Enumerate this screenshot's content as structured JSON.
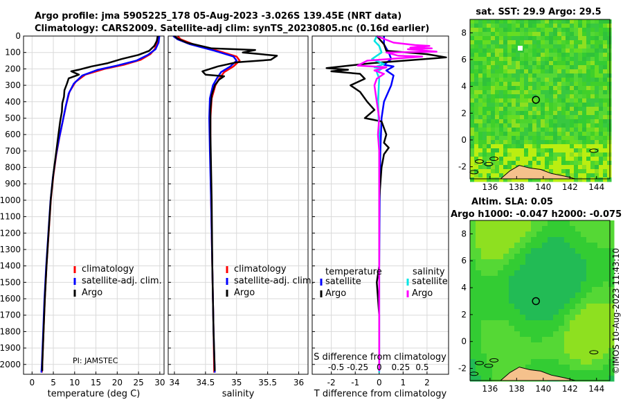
{
  "title_line1": "Argo profile: jma 5905225_178 05-Aug-2023 -3.026S 139.45E (NRT data)",
  "title_line2": "Climatology: CARS2009. Satellite-adj clim: synTS_20230805.nc (0.16d earlier)",
  "pi_label": "PI: JAMSTEC",
  "watermark": "©IMOS 10-Aug-2023 11:43:10",
  "colors": {
    "clim": "#ff0000",
    "sat": "#0000ff",
    "argo": "#000000",
    "sat_s": "#00e5e5",
    "argo_s": "#ff00ff",
    "land": "#f5c18c"
  },
  "chart_data": [
    {
      "type": "line",
      "id": "temperature",
      "xlabel": "temperature (deg C)",
      "xlim": [
        -2,
        31
      ],
      "ylim": [
        2060,
        0
      ],
      "xticks": [
        0,
        5,
        10,
        15,
        20,
        25,
        30
      ],
      "yticks": [
        0,
        100,
        200,
        300,
        400,
        500,
        600,
        700,
        800,
        900,
        1000,
        1100,
        1200,
        1300,
        1400,
        1500,
        1600,
        1700,
        1800,
        1900,
        2000
      ],
      "legend": [
        "climatology",
        "satellite-adj. clim.",
        "Argo"
      ],
      "series": [
        {
          "name": "climatology",
          "color": "clim",
          "points": [
            [
              29.6,
              0
            ],
            [
              29.4,
              40
            ],
            [
              28.8,
              80
            ],
            [
              27.8,
              110
            ],
            [
              25.5,
              145
            ],
            [
              21.5,
              175
            ],
            [
              17,
              200
            ],
            [
              12.5,
              235
            ],
            [
              10.2,
              280
            ],
            [
              8.8,
              340
            ],
            [
              8,
              420
            ],
            [
              7.2,
              520
            ],
            [
              6.4,
              620
            ],
            [
              5.7,
              720
            ],
            [
              5,
              850
            ],
            [
              4.4,
              1000
            ],
            [
              3.9,
              1200
            ],
            [
              3.4,
              1400
            ],
            [
              3,
              1600
            ],
            [
              2.7,
              1800
            ],
            [
              2.4,
              2000
            ],
            [
              2.3,
              2050
            ]
          ]
        },
        {
          "name": "satellite-adj. clim.",
          "color": "sat",
          "points": [
            [
              29.9,
              0
            ],
            [
              29.7,
              40
            ],
            [
              29,
              80
            ],
            [
              27.2,
              115
            ],
            [
              24.5,
              150
            ],
            [
              20,
              180
            ],
            [
              15.5,
              205
            ],
            [
              11.8,
              240
            ],
            [
              9.8,
              290
            ],
            [
              8.6,
              350
            ],
            [
              7.9,
              430
            ],
            [
              7.1,
              530
            ],
            [
              6.3,
              630
            ],
            [
              5.6,
              730
            ],
            [
              4.9,
              860
            ],
            [
              4.3,
              1010
            ],
            [
              3.8,
              1210
            ],
            [
              3.3,
              1410
            ],
            [
              2.9,
              1610
            ],
            [
              2.6,
              1810
            ],
            [
              2.3,
              2000
            ],
            [
              2.2,
              2050
            ]
          ]
        },
        {
          "name": "Argo",
          "color": "argo",
          "points": [
            [
              29.5,
              0
            ],
            [
              29.3,
              30
            ],
            [
              28.7,
              60
            ],
            [
              27.5,
              90
            ],
            [
              25,
              115
            ],
            [
              21,
              140
            ],
            [
              17.8,
              165
            ],
            [
              14,
              185
            ],
            [
              11,
              205
            ],
            [
              9.2,
              215
            ],
            [
              11,
              235
            ],
            [
              8.6,
              258
            ],
            [
              8.2,
              290
            ],
            [
              7.6,
              330
            ],
            [
              7.5,
              370
            ],
            [
              7.1,
              410
            ],
            [
              7,
              460
            ],
            [
              6.6,
              520
            ],
            [
              6.2,
              600
            ],
            [
              5.7,
              700
            ],
            [
              5,
              840
            ],
            [
              4.4,
              990
            ],
            [
              3.9,
              1190
            ],
            [
              3.4,
              1400
            ],
            [
              3,
              1600
            ],
            [
              2.7,
              1800
            ],
            [
              2.4,
              2000
            ],
            [
              2.4,
              2040
            ]
          ]
        }
      ]
    },
    {
      "type": "line",
      "id": "salinity",
      "xlabel": "salinity",
      "xlim": [
        33.9,
        36.15
      ],
      "ylim": [
        2060,
        0
      ],
      "xticks": [
        34,
        34.5,
        35,
        35.5,
        36
      ],
      "legend": [
        "climatology",
        "satellite-adj. clim.",
        "Argo"
      ],
      "series": [
        {
          "name": "climatology",
          "color": "clim",
          "points": [
            [
              34.05,
              0
            ],
            [
              34.1,
              20
            ],
            [
              34.3,
              50
            ],
            [
              34.7,
              90
            ],
            [
              35,
              125
            ],
            [
              35.05,
              150
            ],
            [
              34.95,
              185
            ],
            [
              34.8,
              220
            ],
            [
              34.72,
              260
            ],
            [
              34.66,
              300
            ],
            [
              34.6,
              380
            ],
            [
              34.58,
              500
            ],
            [
              34.58,
              700
            ],
            [
              34.59,
              1000
            ],
            [
              34.61,
              1400
            ],
            [
              34.63,
              1800
            ],
            [
              34.64,
              2050
            ]
          ]
        },
        {
          "name": "satellite-adj. clim.",
          "color": "sat",
          "points": [
            [
              33.98,
              0
            ],
            [
              34.05,
              20
            ],
            [
              34.25,
              50
            ],
            [
              34.65,
              90
            ],
            [
              34.95,
              125
            ],
            [
              35.0,
              150
            ],
            [
              34.9,
              185
            ],
            [
              34.75,
              220
            ],
            [
              34.68,
              260
            ],
            [
              34.62,
              300
            ],
            [
              34.57,
              380
            ],
            [
              34.56,
              500
            ],
            [
              34.57,
              700
            ],
            [
              34.59,
              1000
            ],
            [
              34.61,
              1400
            ],
            [
              34.63,
              1800
            ],
            [
              34.65,
              2050
            ]
          ]
        },
        {
          "name": "Argo",
          "color": "argo",
          "points": [
            [
              34.0,
              0
            ],
            [
              34.05,
              15
            ],
            [
              34.2,
              40
            ],
            [
              34.6,
              75
            ],
            [
              35.3,
              85
            ],
            [
              35.1,
              100
            ],
            [
              35.65,
              120
            ],
            [
              35.55,
              145
            ],
            [
              35.0,
              160
            ],
            [
              34.7,
              185
            ],
            [
              34.45,
              215
            ],
            [
              34.5,
              235
            ],
            [
              34.8,
              245
            ],
            [
              34.72,
              265
            ],
            [
              34.65,
              300
            ],
            [
              34.6,
              360
            ],
            [
              34.58,
              450
            ],
            [
              34.58,
              600
            ],
            [
              34.59,
              800
            ],
            [
              34.6,
              1000
            ],
            [
              34.61,
              1400
            ],
            [
              34.63,
              1800
            ],
            [
              34.65,
              2040
            ]
          ]
        }
      ]
    },
    {
      "type": "line",
      "id": "difference",
      "xlabel": "T difference from climatology",
      "xlabel_top": "S difference from climatology",
      "xlim": [
        -2.8,
        2.9
      ],
      "ylim": [
        2060,
        0
      ],
      "xticks": [
        -2,
        -1,
        0,
        1,
        2
      ],
      "top_ticks": [
        [
          "-0.5",
          -1.8
        ],
        [
          "-0.25",
          -0.9
        ],
        [
          "0",
          0
        ],
        [
          "0.25",
          0.9
        ],
        [
          "0.5",
          1.8
        ]
      ],
      "legend_left_title": "temperature",
      "legend_right_title": "salinity",
      "legend_left": [
        "satellite",
        "Argo"
      ],
      "legend_right": [
        "satellite",
        "Argo"
      ],
      "series": [
        {
          "name": "T satellite",
          "color": "sat",
          "points": [
            [
              0.2,
              0
            ],
            [
              0.2,
              50
            ],
            [
              0.4,
              100
            ],
            [
              0.5,
              140
            ],
            [
              0.2,
              175
            ],
            [
              0.6,
              185
            ],
            [
              0.3,
              210
            ],
            [
              0.6,
              240
            ],
            [
              0.5,
              300
            ],
            [
              0.2,
              400
            ],
            [
              0.1,
              500
            ],
            [
              0.05,
              700
            ],
            [
              0.02,
              1000
            ],
            [
              0,
              1400
            ],
            [
              0,
              2050
            ]
          ]
        },
        {
          "name": "T Argo",
          "color": "argo",
          "points": [
            [
              -0.1,
              0
            ],
            [
              0.2,
              50
            ],
            [
              0.3,
              90
            ],
            [
              2.0,
              110
            ],
            [
              2.8,
              130
            ],
            [
              -0.3,
              165
            ],
            [
              -2.2,
              195
            ],
            [
              -1.3,
              205
            ],
            [
              -2.0,
              215
            ],
            [
              -0.8,
              230
            ],
            [
              -0.6,
              260
            ],
            [
              -1.2,
              300
            ],
            [
              -0.8,
              340
            ],
            [
              -0.5,
              400
            ],
            [
              -0.2,
              450
            ],
            [
              -0.6,
              500
            ],
            [
              0.1,
              520
            ],
            [
              0.3,
              600
            ],
            [
              0.2,
              650
            ],
            [
              0.4,
              680
            ],
            [
              0.2,
              720
            ],
            [
              0.1,
              800
            ],
            [
              0.05,
              900
            ],
            [
              0,
              1000
            ],
            [
              0,
              1400
            ],
            [
              -0.1,
              1500
            ],
            [
              0,
              1700
            ],
            [
              0,
              2040
            ]
          ]
        },
        {
          "name": "S satellite",
          "color": "sat_s",
          "points": [
            [
              -0.1,
              0
            ],
            [
              -0.2,
              30
            ],
            [
              0,
              60
            ],
            [
              0.1,
              100
            ],
            [
              -0.3,
              140
            ],
            [
              0.2,
              170
            ],
            [
              -0.2,
              190
            ],
            [
              0.1,
              200
            ],
            [
              -0.1,
              220
            ],
            [
              0,
              260
            ],
            [
              -0.05,
              400
            ],
            [
              0,
              600
            ],
            [
              0,
              2050
            ]
          ]
        },
        {
          "name": "S Argo",
          "color": "argo_s",
          "points": [
            [
              -0.1,
              0
            ],
            [
              0.6,
              40
            ],
            [
              1.5,
              55
            ],
            [
              2.1,
              60
            ],
            [
              1.3,
              70
            ],
            [
              2.2,
              75
            ],
            [
              1.2,
              80
            ],
            [
              2.4,
              95
            ],
            [
              0.3,
              100
            ],
            [
              0.8,
              120
            ],
            [
              1.8,
              125
            ],
            [
              -0.5,
              150
            ],
            [
              -0.9,
              180
            ],
            [
              0.3,
              190
            ],
            [
              -0.2,
              210
            ],
            [
              0.2,
              230
            ],
            [
              -0.1,
              260
            ],
            [
              -0.2,
              300
            ],
            [
              -0.1,
              400
            ],
            [
              0,
              500
            ],
            [
              -0.05,
              600
            ],
            [
              0,
              700
            ],
            [
              0,
              1000
            ],
            [
              0,
              2040
            ]
          ]
        }
      ]
    },
    {
      "type": "heatmap",
      "id": "sst_map",
      "title": "sat. SST: 29.9 Argo: 29.5",
      "xticks": [
        136,
        138,
        140,
        142,
        144
      ],
      "yticks": [
        -2,
        0,
        2,
        4,
        6,
        8
      ],
      "xlim": [
        134.5,
        145
      ],
      "ylim": [
        -2.9,
        9
      ],
      "argo_position": [
        139.45,
        3.0
      ]
    },
    {
      "type": "heatmap",
      "id": "sla_map",
      "title_line1": "Altim. SLA: 0.05",
      "title_line2": "Argo h1000: -0.047 h2000: -0.075",
      "xticks": [
        136,
        138,
        140,
        142,
        144
      ],
      "yticks": [
        -2,
        0,
        2,
        4,
        6,
        8
      ],
      "xlim": [
        134.5,
        145
      ],
      "ylim": [
        -2.9,
        9
      ],
      "argo_position": [
        139.45,
        3.0
      ]
    }
  ]
}
